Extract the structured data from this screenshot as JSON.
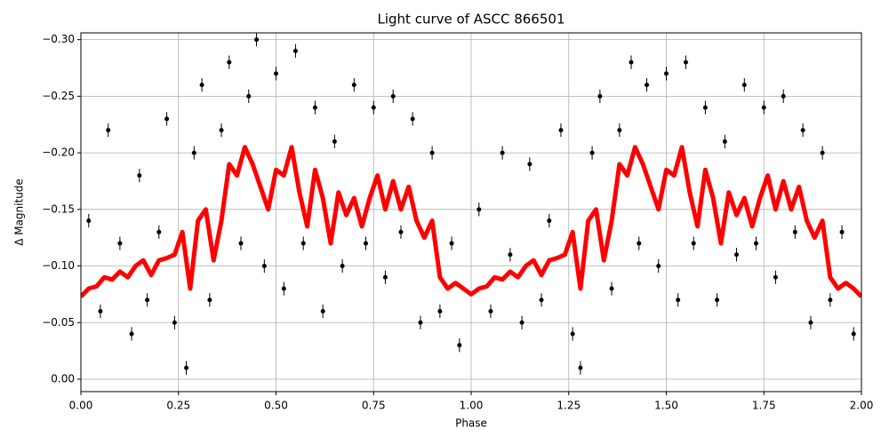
{
  "chart_data": {
    "type": "scatter-line",
    "title": "Light curve of ASCC 866501",
    "xlabel": "Phase",
    "ylabel": "Δ Magnitude",
    "xlim": [
      0,
      2
    ],
    "ylim": [
      0.011,
      -0.306
    ],
    "grid": true,
    "xticks": [
      {
        "value": 0,
        "label": "0.00"
      },
      {
        "value": 0.25,
        "label": "0.25"
      },
      {
        "value": 0.5,
        "label": "0.50"
      },
      {
        "value": 0.75,
        "label": "0.75"
      },
      {
        "value": 1,
        "label": "1.00"
      },
      {
        "value": 1.25,
        "label": "1.25"
      },
      {
        "value": 1.5,
        "label": "1.50"
      },
      {
        "value": 1.75,
        "label": "1.75"
      },
      {
        "value": 2,
        "label": "2.00"
      }
    ],
    "yticks": [
      {
        "value": -0.3,
        "label": "−0.30"
      },
      {
        "value": -0.25,
        "label": "−0.25"
      },
      {
        "value": -0.2,
        "label": "−0.20"
      },
      {
        "value": -0.15,
        "label": "−0.15"
      },
      {
        "value": -0.1,
        "label": "−0.10"
      },
      {
        "value": -0.05,
        "label": "−0.05"
      },
      {
        "value": 0,
        "label": "0.00"
      }
    ],
    "series": [
      {
        "kind": "scatter",
        "color": "#000000",
        "x": [
          0.02,
          0.05,
          0.07,
          0.1,
          0.13,
          0.15,
          0.17,
          0.2,
          0.22,
          0.24,
          0.27,
          0.29,
          0.31,
          0.33,
          0.36,
          0.38,
          0.41,
          0.43,
          0.45,
          0.47,
          0.5,
          0.52,
          0.55,
          0.57,
          0.6,
          0.62,
          0.65,
          0.67,
          0.7,
          0.73,
          0.75,
          0.78,
          0.8,
          0.82,
          0.85,
          0.87,
          0.9,
          0.92,
          0.95,
          0.97,
          1.02,
          1.05,
          1.08,
          1.1,
          1.13,
          1.15,
          1.18,
          1.2,
          1.23,
          1.26,
          1.28,
          1.31,
          1.33,
          1.36,
          1.38,
          1.41,
          1.43,
          1.45,
          1.48,
          1.5,
          1.53,
          1.55,
          1.57,
          1.6,
          1.63,
          1.65,
          1.68,
          1.7,
          1.73,
          1.75,
          1.78,
          1.8,
          1.83,
          1.85,
          1.87,
          1.9,
          1.92,
          1.95,
          1.98
        ],
        "values": [
          -0.14,
          -0.06,
          -0.22,
          -0.12,
          -0.04,
          -0.18,
          -0.07,
          -0.13,
          -0.23,
          -0.05,
          -0.01,
          -0.2,
          -0.26,
          -0.07,
          -0.22,
          -0.28,
          -0.12,
          -0.25,
          -0.3,
          -0.1,
          -0.27,
          -0.08,
          -0.29,
          -0.12,
          -0.24,
          -0.06,
          -0.21,
          -0.1,
          -0.26,
          -0.12,
          -0.24,
          -0.09,
          -0.25,
          -0.13,
          -0.23,
          -0.05,
          -0.2,
          -0.06,
          -0.12,
          -0.03,
          -0.15,
          -0.06,
          -0.2,
          -0.11,
          -0.05,
          -0.19,
          -0.07,
          -0.14,
          -0.22,
          -0.04,
          -0.01,
          -0.2,
          -0.25,
          -0.08,
          -0.22,
          -0.28,
          -0.12,
          -0.26,
          -0.1,
          -0.27,
          -0.07,
          -0.28,
          -0.12,
          -0.24,
          -0.07,
          -0.21,
          -0.11,
          -0.26,
          -0.12,
          -0.24,
          -0.09,
          -0.25,
          -0.13,
          -0.22,
          -0.05,
          -0.2,
          -0.07,
          -0.13,
          -0.04
        ],
        "errors": [
          0.006,
          0.006,
          0.006,
          0.006,
          0.006,
          0.006,
          0.006,
          0.006,
          0.006,
          0.006,
          0.006,
          0.006,
          0.006,
          0.006,
          0.006,
          0.006,
          0.006,
          0.006,
          0.006,
          0.006,
          0.006,
          0.006,
          0.006,
          0.006,
          0.006,
          0.006,
          0.006,
          0.006,
          0.006,
          0.006,
          0.006,
          0.006,
          0.006,
          0.006,
          0.006,
          0.006,
          0.006,
          0.006,
          0.006,
          0.006,
          0.006,
          0.006,
          0.006,
          0.006,
          0.006,
          0.006,
          0.006,
          0.006,
          0.006,
          0.006,
          0.006,
          0.006,
          0.006,
          0.006,
          0.006,
          0.006,
          0.006,
          0.006,
          0.006,
          0.006,
          0.006,
          0.006,
          0.006,
          0.006,
          0.006,
          0.006,
          0.006,
          0.006,
          0.006,
          0.006,
          0.006,
          0.006,
          0.006,
          0.006,
          0.006,
          0.006,
          0.006,
          0.006,
          0.006
        ]
      },
      {
        "kind": "line",
        "color": "#ff0000",
        "x": [
          0,
          0.02,
          0.04,
          0.06,
          0.08,
          0.1,
          0.12,
          0.14,
          0.16,
          0.18,
          0.2,
          0.22,
          0.24,
          0.26,
          0.28,
          0.3,
          0.32,
          0.34,
          0.36,
          0.38,
          0.4,
          0.42,
          0.44,
          0.46,
          0.48,
          0.5,
          0.52,
          0.54,
          0.56,
          0.58,
          0.6,
          0.62,
          0.64,
          0.66,
          0.68,
          0.7,
          0.72,
          0.74,
          0.76,
          0.78,
          0.8,
          0.82,
          0.84,
          0.86,
          0.88,
          0.9,
          0.92,
          0.94,
          0.96,
          0.98,
          1,
          1.02,
          1.04,
          1.06,
          1.08,
          1.1,
          1.12,
          1.14,
          1.16,
          1.18,
          1.2,
          1.22,
          1.24,
          1.26,
          1.28,
          1.3,
          1.32,
          1.34,
          1.36,
          1.38,
          1.4,
          1.42,
          1.44,
          1.46,
          1.48,
          1.5,
          1.52,
          1.54,
          1.56,
          1.58,
          1.6,
          1.62,
          1.64,
          1.66,
          1.68,
          1.7,
          1.72,
          1.74,
          1.76,
          1.78,
          1.8,
          1.82,
          1.84,
          1.86,
          1.88,
          1.9,
          1.92,
          1.94,
          1.96,
          1.98,
          2
        ],
        "values": [
          -0.073,
          -0.08,
          -0.082,
          -0.09,
          -0.088,
          -0.095,
          -0.09,
          -0.1,
          -0.105,
          -0.092,
          -0.105,
          -0.107,
          -0.11,
          -0.13,
          -0.08,
          -0.14,
          -0.15,
          -0.105,
          -0.14,
          -0.19,
          -0.18,
          -0.205,
          -0.19,
          -0.17,
          -0.15,
          -0.185,
          -0.18,
          -0.205,
          -0.165,
          -0.135,
          -0.185,
          -0.16,
          -0.12,
          -0.165,
          -0.145,
          -0.16,
          -0.135,
          -0.16,
          -0.18,
          -0.15,
          -0.175,
          -0.15,
          -0.17,
          -0.14,
          -0.125,
          -0.14,
          -0.09,
          -0.08,
          -0.085,
          -0.08,
          -0.075,
          -0.08,
          -0.082,
          -0.09,
          -0.088,
          -0.095,
          -0.09,
          -0.1,
          -0.105,
          -0.092,
          -0.105,
          -0.107,
          -0.11,
          -0.13,
          -0.08,
          -0.14,
          -0.15,
          -0.105,
          -0.14,
          -0.19,
          -0.18,
          -0.205,
          -0.19,
          -0.17,
          -0.15,
          -0.185,
          -0.18,
          -0.205,
          -0.165,
          -0.135,
          -0.185,
          -0.16,
          -0.12,
          -0.165,
          -0.145,
          -0.16,
          -0.135,
          -0.16,
          -0.18,
          -0.15,
          -0.175,
          -0.15,
          -0.17,
          -0.14,
          -0.125,
          -0.14,
          -0.09,
          -0.08,
          -0.085,
          -0.08,
          -0.073
        ]
      }
    ]
  }
}
